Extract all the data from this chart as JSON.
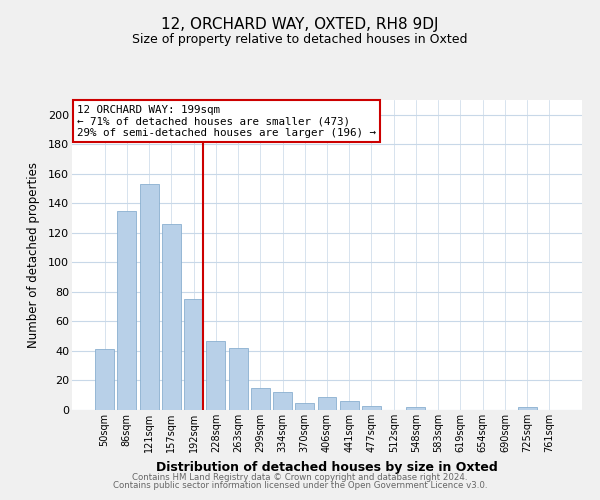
{
  "title": "12, ORCHARD WAY, OXTED, RH8 9DJ",
  "subtitle": "Size of property relative to detached houses in Oxted",
  "xlabel": "Distribution of detached houses by size in Oxted",
  "ylabel": "Number of detached properties",
  "bar_labels": [
    "50sqm",
    "86sqm",
    "121sqm",
    "157sqm",
    "192sqm",
    "228sqm",
    "263sqm",
    "299sqm",
    "334sqm",
    "370sqm",
    "406sqm",
    "441sqm",
    "477sqm",
    "512sqm",
    "548sqm",
    "583sqm",
    "619sqm",
    "654sqm",
    "690sqm",
    "725sqm",
    "761sqm"
  ],
  "bar_values": [
    41,
    135,
    153,
    126,
    75,
    47,
    42,
    15,
    12,
    5,
    9,
    6,
    3,
    0,
    2,
    0,
    0,
    0,
    0,
    2,
    0
  ],
  "bar_color": "#b8d0e8",
  "bar_edge_color": "#8ab0d0",
  "vline_index": 4,
  "vline_color": "#cc0000",
  "annotation_title": "12 ORCHARD WAY: 199sqm",
  "annotation_line1": "← 71% of detached houses are smaller (473)",
  "annotation_line2": "29% of semi-detached houses are larger (196) →",
  "annotation_box_color": "#ffffff",
  "annotation_box_edge": "#cc0000",
  "ylim": [
    0,
    210
  ],
  "yticks": [
    0,
    20,
    40,
    60,
    80,
    100,
    120,
    140,
    160,
    180,
    200
  ],
  "footer1": "Contains HM Land Registry data © Crown copyright and database right 2024.",
  "footer2": "Contains public sector information licensed under the Open Government Licence v3.0.",
  "bg_color": "#f0f0f0",
  "plot_bg_color": "#ffffff",
  "grid_color": "#c8d8e8"
}
